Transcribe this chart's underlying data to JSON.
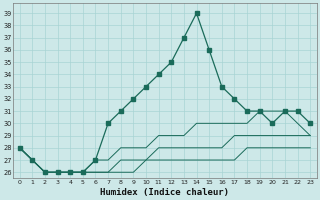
{
  "xlabel": "Humidex (Indice chaleur)",
  "bg_color": "#cde8e8",
  "line_color": "#1a6b5a",
  "grid_color": "#a8d4d4",
  "x_ticks": [
    0,
    1,
    2,
    3,
    4,
    5,
    6,
    7,
    8,
    9,
    10,
    11,
    12,
    13,
    14,
    15,
    16,
    17,
    18,
    19,
    20,
    21,
    22,
    23
  ],
  "y_ticks": [
    26,
    27,
    28,
    29,
    30,
    31,
    32,
    33,
    34,
    35,
    36,
    37,
    38,
    39
  ],
  "ylim": [
    25.5,
    39.8
  ],
  "xlim": [
    -0.5,
    23.5
  ],
  "series": {
    "main": [
      28,
      27,
      26,
      26,
      26,
      26,
      27,
      30,
      31,
      32,
      33,
      34,
      35,
      37,
      39,
      36,
      33,
      32,
      31,
      31,
      30,
      31,
      31,
      30
    ],
    "line2": [
      28,
      27,
      26,
      26,
      26,
      26,
      27,
      27,
      28,
      28,
      28,
      29,
      29,
      29,
      30,
      30,
      30,
      30,
      30,
      31,
      31,
      31,
      30,
      29
    ],
    "line3": [
      28,
      27,
      26,
      26,
      26,
      26,
      26,
      26,
      27,
      27,
      27,
      28,
      28,
      28,
      28,
      28,
      28,
      29,
      29,
      29,
      29,
      29,
      29,
      29
    ],
    "line4": [
      28,
      27,
      26,
      26,
      26,
      26,
      26,
      26,
      26,
      26,
      27,
      27,
      27,
      27,
      27,
      27,
      27,
      27,
      28,
      28,
      28,
      28,
      28,
      28
    ]
  }
}
